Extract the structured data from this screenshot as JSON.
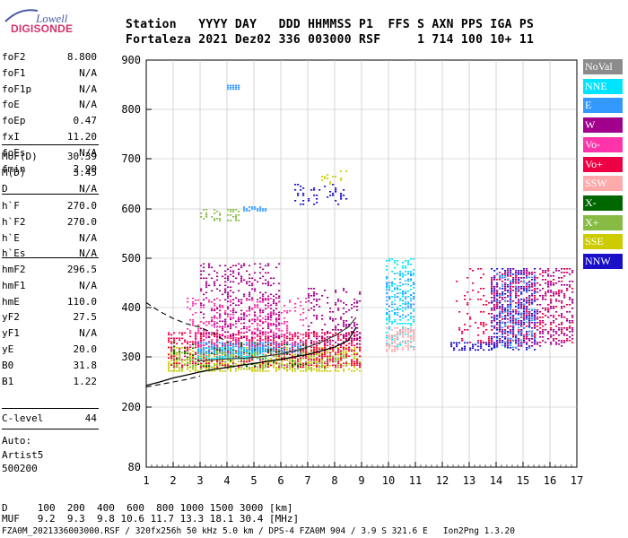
{
  "logo": {
    "top": "Lowell",
    "main": "DIGISONDE"
  },
  "header": {
    "row1": "Station   YYYY DAY   DDD HHMMSS P1  FFS S AXN PPS IGA PS",
    "row2": "Fortaleza 2021 Dez02 336 003000 RSF     1 714 100 10+ 11"
  },
  "params_group1": [
    {
      "k": "foF2",
      "v": "8.800"
    },
    {
      "k": "foF1",
      "v": "N/A"
    },
    {
      "k": "foF1p",
      "v": "N/A"
    },
    {
      "k": "foE",
      "v": "N/A"
    },
    {
      "k": "foEp",
      "v": "0.47"
    },
    {
      "k": "fxI",
      "v": "11.20"
    },
    {
      "k": "foEs",
      "v": "N/A"
    },
    {
      "k": "fmin",
      "v": "2.90"
    }
  ],
  "params_group2": [
    {
      "k": "MUF(D)",
      "v": "30.39"
    },
    {
      "k": "M(D)",
      "v": "3.45"
    },
    {
      "k": "D",
      "v": "N/A"
    }
  ],
  "params_group3": [
    {
      "k": "h`F",
      "v": "270.0"
    },
    {
      "k": "h`F2",
      "v": "270.0"
    },
    {
      "k": "h`E",
      "v": "N/A"
    },
    {
      "k": "h`Es",
      "v": "N/A"
    }
  ],
  "params_group4": [
    {
      "k": "hmF2",
      "v": "296.5"
    },
    {
      "k": "hmF1",
      "v": "N/A"
    },
    {
      "k": "hmE",
      "v": "110.0"
    },
    {
      "k": "yF2",
      "v": "27.5"
    },
    {
      "k": "yF1",
      "v": "N/A"
    },
    {
      "k": "yE",
      "v": "20.0"
    },
    {
      "k": "B0",
      "v": "31.8"
    },
    {
      "k": "B1",
      "v": "1.22"
    }
  ],
  "clevel": {
    "k": "C-level",
    "v": "44"
  },
  "auto": {
    "line1": "Auto:",
    "line2": "Artist5",
    "line3": "500200"
  },
  "legend": [
    {
      "label": "NoVal",
      "bg": "#8c8c8c",
      "fg": "#ffffff"
    },
    {
      "label": "NNE",
      "bg": "#00e5ff",
      "fg": "#ffffff"
    },
    {
      "label": "E",
      "bg": "#3399ff",
      "fg": "#ffffff"
    },
    {
      "label": "W",
      "bg": "#a0008c",
      "fg": "#ffffff"
    },
    {
      "label": "Vo-",
      "bg": "#ff33aa",
      "fg": "#ffffff"
    },
    {
      "label": "Vo+",
      "bg": "#ee0044",
      "fg": "#ffffff"
    },
    {
      "label": "SSW",
      "bg": "#ffaaaa",
      "fg": "#ffffff"
    },
    {
      "label": "X-",
      "bg": "#006600",
      "fg": "#ffffff"
    },
    {
      "label": "X+",
      "bg": "#88bb44",
      "fg": "#ffffff"
    },
    {
      "label": "SSE",
      "bg": "#cccc00",
      "fg": "#ffffff"
    },
    {
      "label": "NNW",
      "bg": "#1a10c8",
      "fg": "#ffffff"
    }
  ],
  "footer": {
    "line1": "D     100  200  400  600  800 1000 1500 3000 [km]",
    "line2": "MUF   9.2  9.3  9.8 10.6 11.7 13.3 18.1 30.4 [MHz]",
    "line3": "FZA0M_2021336003000.RSF / 320fx256h 50 kHz 5.0 km / DPS-4 FZA0M 904 / 3.9 S 321.6 E   Ion2Png 1.3.20"
  },
  "chart_data": {
    "type": "scatter",
    "x_ticks": [
      "1",
      "2",
      "3",
      "4",
      "5",
      "6",
      "7",
      "8",
      "9",
      "10",
      "11",
      "12",
      "13",
      "14",
      "15",
      "16",
      "17"
    ],
    "y_ticks": [
      "80",
      "200",
      "300",
      "400",
      "500",
      "600",
      "700",
      "800",
      "900"
    ],
    "xlim": [
      1,
      17
    ],
    "ylim": [
      80,
      900
    ],
    "grid": true,
    "legend_position": "right",
    "profile_curve": {
      "x": [
        1.0,
        1.5,
        2.0,
        2.5,
        3.0,
        3.5,
        4.0,
        4.5,
        5.0,
        5.5,
        6.0,
        6.5,
        7.0,
        7.5,
        8.0,
        8.5,
        8.8
      ],
      "y": [
        243,
        250,
        258,
        264,
        270,
        275,
        279,
        283,
        287,
        291,
        295,
        300,
        305,
        312,
        320,
        333,
        360
      ]
    },
    "extrapolation_upper": {
      "x": [
        1.0,
        1.5,
        2.0,
        2.5,
        3.0,
        3.5,
        4.0
      ],
      "y": [
        410,
        392,
        378,
        367,
        360,
        348,
        330
      ]
    },
    "extrapolation_lower": {
      "x": [
        1.0,
        1.5,
        2.0,
        2.5,
        3.0
      ],
      "y": [
        240,
        245,
        250,
        255,
        262
      ]
    },
    "trace_curve": {
      "x": [
        2.9,
        3.5,
        4.0,
        4.5,
        5.0,
        5.5,
        6.0,
        6.5,
        7.0,
        7.5,
        8.0,
        8.5,
        8.8
      ],
      "y": [
        292,
        294,
        296,
        297,
        299,
        302,
        306,
        312,
        320,
        330,
        343,
        360,
        380
      ]
    },
    "echo_regions": [
      {
        "direction": "SSE",
        "color": "#cccc00",
        "x": [
          1.8,
          9.0
        ],
        "y": [
          270,
          320
        ],
        "density": 0.5
      },
      {
        "direction": "Vo+",
        "color": "#ee0044",
        "x": [
          1.8,
          9.0
        ],
        "y": [
          280,
          350
        ],
        "density": 0.45
      },
      {
        "direction": "NNE",
        "color": "#00e5ff",
        "x": [
          2.9,
          5.5
        ],
        "y": [
          295,
          320
        ],
        "density": 0.6
      },
      {
        "direction": "E",
        "color": "#3399ff",
        "x": [
          2.9,
          6.8
        ],
        "y": [
          305,
          330
        ],
        "density": 0.6
      },
      {
        "direction": "W",
        "color": "#a0008c",
        "x": [
          3.0,
          6.0
        ],
        "y": [
          340,
          490
        ],
        "density": 0.28
      },
      {
        "direction": "Vo-",
        "color": "#ff33aa",
        "x": [
          2.5,
          7.0
        ],
        "y": [
          320,
          420
        ],
        "density": 0.22
      },
      {
        "direction": "X+",
        "color": "#88bb44",
        "x": [
          2.0,
          8.5
        ],
        "y": [
          275,
          310
        ],
        "density": 0.25
      },
      {
        "direction": "X-",
        "color": "#006600",
        "x": [
          2.0,
          7.0
        ],
        "y": [
          280,
          330
        ],
        "density": 0.12
      },
      {
        "direction": "W",
        "color": "#a0008c",
        "x": [
          7.0,
          9.0
        ],
        "y": [
          320,
          440
        ],
        "density": 0.2
      },
      {
        "direction": "NNE",
        "color": "#00e5ff",
        "x": [
          9.9,
          11.0
        ],
        "y": [
          320,
          500
        ],
        "density": 0.3
      },
      {
        "direction": "SSW",
        "color": "#ffaaaa",
        "x": [
          9.9,
          11.0
        ],
        "y": [
          310,
          360
        ],
        "density": 0.55
      },
      {
        "direction": "E",
        "color": "#3399ff",
        "x": [
          9.9,
          11.0
        ],
        "y": [
          380,
          470
        ],
        "density": 0.25
      },
      {
        "direction": "NNW",
        "color": "#1a10c8",
        "x": [
          12.3,
          14.0
        ],
        "y": [
          315,
          330
        ],
        "density": 0.55
      },
      {
        "direction": "NNW",
        "color": "#1a10c8",
        "x": [
          13.8,
          15.5
        ],
        "y": [
          315,
          480
        ],
        "density": 0.35
      },
      {
        "direction": "W",
        "color": "#a0008c",
        "x": [
          13.8,
          16.9
        ],
        "y": [
          320,
          480
        ],
        "density": 0.3
      },
      {
        "direction": "Vo+",
        "color": "#ee0044",
        "x": [
          12.5,
          16.9
        ],
        "y": [
          330,
          480
        ],
        "density": 0.12
      },
      {
        "direction": "E",
        "color": "#3399ff",
        "x": [
          14.0,
          15.5
        ],
        "y": [
          320,
          470
        ],
        "density": 0.18
      },
      {
        "direction": "E",
        "color": "#3399ff",
        "x": [
          4.6,
          5.5
        ],
        "y": [
          595,
          605
        ],
        "density": 0.8
      },
      {
        "direction": "X+",
        "color": "#88bb44",
        "x": [
          3.0,
          4.5
        ],
        "y": [
          575,
          600
        ],
        "density": 0.25
      },
      {
        "direction": "NNW",
        "color": "#1a10c8",
        "x": [
          6.5,
          8.5
        ],
        "y": [
          610,
          650
        ],
        "density": 0.2
      },
      {
        "direction": "SSE",
        "color": "#cccc00",
        "x": [
          7.5,
          8.5
        ],
        "y": [
          650,
          680
        ],
        "density": 0.2
      },
      {
        "direction": "E",
        "color": "#3399ff",
        "x": [
          4.0,
          4.5
        ],
        "y": [
          842,
          850
        ],
        "density": 0.8
      }
    ]
  }
}
